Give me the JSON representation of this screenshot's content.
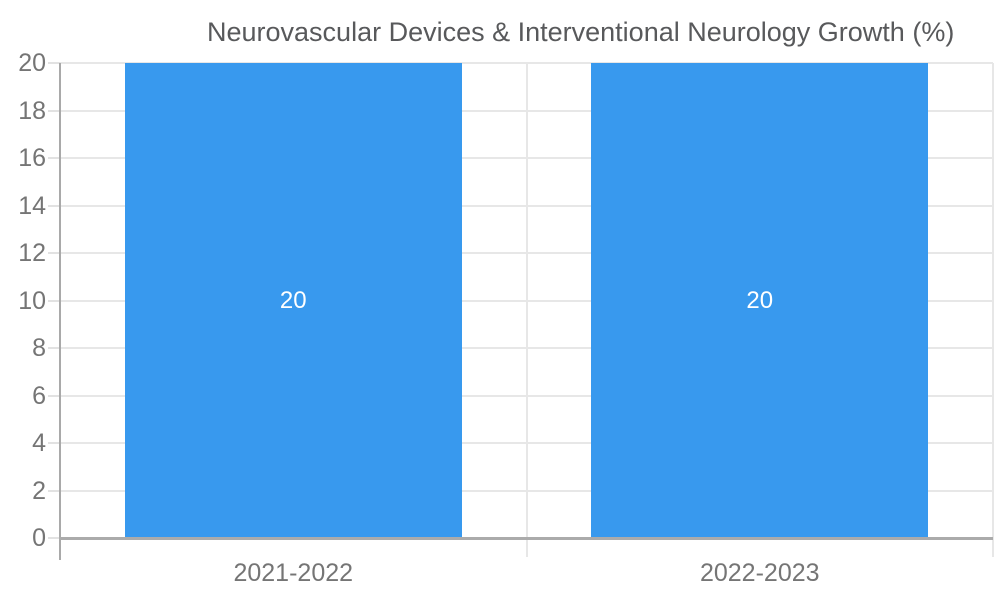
{
  "legend": {
    "label": "Neurovascular Devices & Interventional Neurology Growth (%)"
  },
  "chart_data": {
    "type": "bar",
    "title": "",
    "xlabel": "",
    "ylabel": "",
    "categories": [
      "2021-2022",
      "2022-2023"
    ],
    "series": [
      {
        "name": "Neurovascular Devices & Interventional Neurology Growth (%)",
        "color": "#3899EE",
        "values": [
          20,
          20
        ],
        "value_labels": [
          "20",
          "20"
        ]
      }
    ],
    "ylim": [
      0,
      20
    ],
    "yticks": [
      0,
      2,
      4,
      6,
      8,
      10,
      12,
      14,
      16,
      18,
      20
    ],
    "grid": true,
    "legend_position": "top",
    "colors": {
      "bar": "#3899EE",
      "gridline": "#E7E7E7",
      "axis_line": "#A9A9A9",
      "baseline": "#ABABAB",
      "axis_text": "#757575",
      "legend_text": "#58595B",
      "bar_label_text": "#FFFFFF"
    }
  }
}
